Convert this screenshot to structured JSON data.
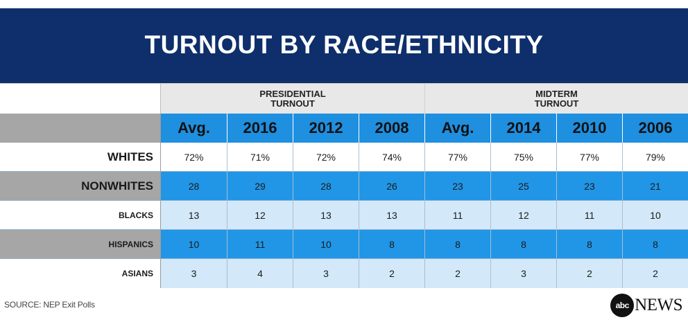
{
  "title": "TURNOUT BY RACE/ETHNICITY",
  "chart_data": {
    "type": "table",
    "title": "TURNOUT BY RACE/ETHNICITY",
    "groups": [
      {
        "label_line1": "PRESIDENTIAL",
        "label_line2": "TURNOUT",
        "columns": [
          "Avg.",
          "2016",
          "2012",
          "2008"
        ]
      },
      {
        "label_line1": "MIDTERM",
        "label_line2": "TURNOUT",
        "columns": [
          "Avg.",
          "2014",
          "2010",
          "2006"
        ]
      }
    ],
    "rows": [
      {
        "label": "WHITES",
        "values": [
          "72%",
          "71%",
          "72%",
          "74%",
          "77%",
          "75%",
          "77%",
          "79%"
        ]
      },
      {
        "label": "NONWHITES",
        "values": [
          "28",
          "29",
          "28",
          "26",
          "23",
          "25",
          "23",
          "21"
        ]
      },
      {
        "label": "BLACKS",
        "values": [
          "13",
          "12",
          "13",
          "13",
          "11",
          "12",
          "11",
          "10"
        ]
      },
      {
        "label": "HISPANICS",
        "values": [
          "10",
          "11",
          "10",
          "8",
          "8",
          "8",
          "8",
          "8"
        ]
      },
      {
        "label": "ASIANS",
        "values": [
          "3",
          "4",
          "3",
          "2",
          "2",
          "3",
          "2",
          "2"
        ]
      }
    ]
  },
  "source": "SOURCE: NEP Exit Polls",
  "logo": {
    "mark": "abc",
    "text": "NEWS"
  },
  "colors": {
    "header_bg": "#0e2f6b",
    "year_row": "#1f8fe0",
    "blue_row": "#2196e6",
    "light_row": "#d3e9f9",
    "label_gray": "#a6a6a6"
  }
}
